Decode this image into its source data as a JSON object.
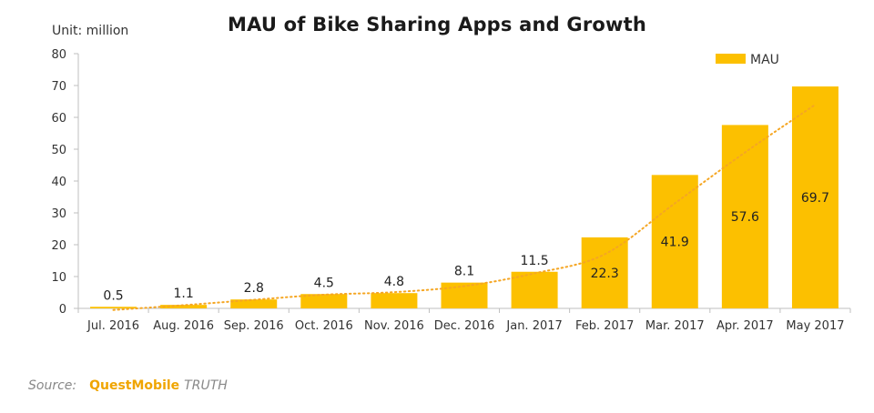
{
  "chart_data": {
    "type": "bar",
    "title": "MAU of Bike Sharing Apps and Growth",
    "unit_label": "Unit: million",
    "categories": [
      "Jul. 2016",
      "Aug. 2016",
      "Sep. 2016",
      "Oct. 2016",
      "Nov. 2016",
      "Dec. 2016",
      "Jan. 2017",
      "Feb. 2017",
      "Mar. 2017",
      "Apr. 2017",
      "May 2017"
    ],
    "series": [
      {
        "name": "MAU",
        "values": [
          0.5,
          1.1,
          2.8,
          4.5,
          4.8,
          8.1,
          11.5,
          22.3,
          41.9,
          57.6,
          69.7
        ]
      }
    ],
    "trendline": {
      "type": "dotted-curve",
      "values": [
        -0.5,
        1.0,
        2.7,
        4.3,
        5.1,
        7.0,
        11.0,
        17.0,
        33.0,
        49.0,
        64.0
      ]
    },
    "ylim": [
      0,
      80
    ],
    "yticks": [
      "0",
      "10",
      "20",
      "30",
      "40",
      "50",
      "60",
      "70",
      "80"
    ],
    "legend": {
      "position": "top-right",
      "label": "MAU"
    },
    "xlabel": "",
    "ylabel": "",
    "grid": false
  },
  "colors": {
    "bar": "#fcc000",
    "trend": "#f5a623",
    "axis": "#bfbfbf",
    "text": "#333333"
  },
  "source": {
    "label": "Source:",
    "brand": "QuestMobile",
    "suffix": "TRUTH"
  }
}
